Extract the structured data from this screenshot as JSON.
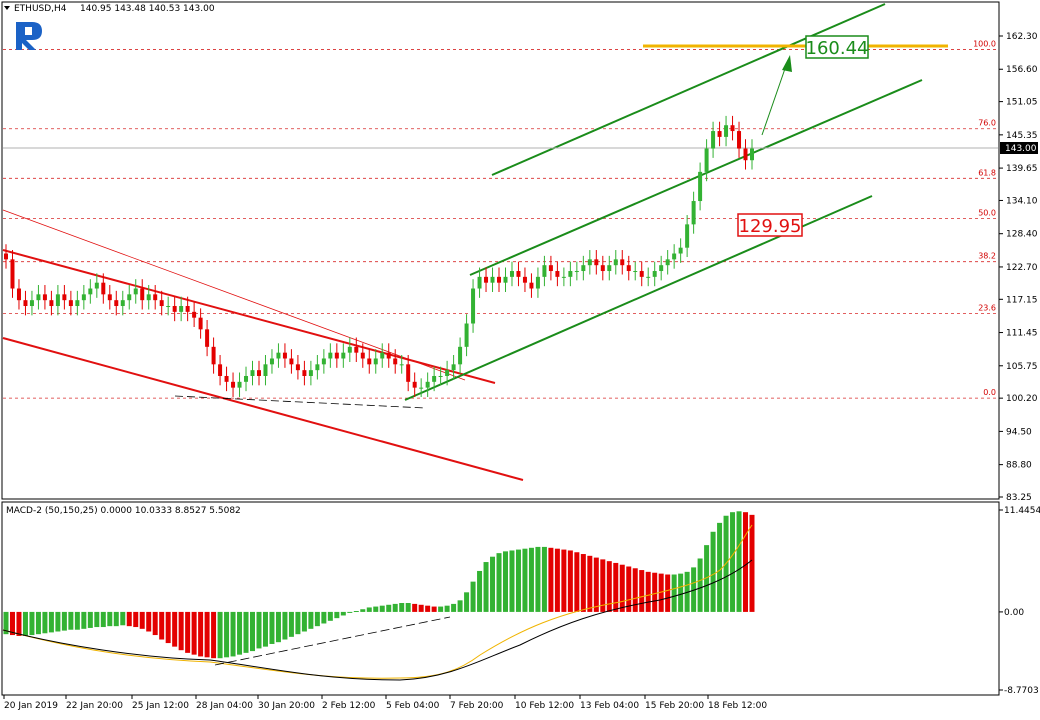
{
  "header": {
    "symbol": "ETHUSD,H4",
    "ohlc": "140.95 143.48 140.53 143.00"
  },
  "macd_header": "MACD-2 (50,150,25) 0.0000 10.0333 8.8527 5.5082",
  "colors": {
    "bull": "#33b233",
    "bear": "#e30000",
    "red_line": "#e11010",
    "green_line": "#1a8c1a",
    "fib_dash": "#d82a2a",
    "orange": "#f0b400",
    "logo": "#1b62c6"
  },
  "chart_data": [
    {
      "type": "candlestick",
      "panel": "price",
      "yaxis_ticks": [
        "162.30",
        "156.60",
        "151.05",
        "145.35",
        "139.65",
        "134.10",
        "128.40",
        "122.70",
        "117.15",
        "111.45",
        "105.75",
        "100.20",
        "94.50",
        "88.80",
        "83.25"
      ],
      "ylim": [
        83.25,
        165.0
      ],
      "current_price": "143.00",
      "fibonacci_levels": [
        {
          "label": "100.0",
          "price": 160.0
        },
        {
          "label": "76.0",
          "price": 146.4
        },
        {
          "label": "61.8",
          "price": 137.9
        },
        {
          "label": "50.0",
          "price": 131.0
        },
        {
          "label": "38.2",
          "price": 123.6
        },
        {
          "label": "23.6",
          "price": 114.7
        },
        {
          "label": "0.0",
          "price": 100.2
        }
      ],
      "targets": [
        {
          "label": "160.44",
          "color": "green"
        },
        {
          "label": "129.95",
          "color": "red"
        }
      ],
      "approx_closes": [
        124,
        119,
        117,
        116,
        117,
        118,
        117,
        116,
        118,
        117,
        116,
        117,
        118,
        119,
        120,
        118,
        117,
        116,
        117,
        118,
        119,
        117,
        118,
        117,
        116,
        116,
        115,
        116,
        115,
        114,
        112,
        109,
        106,
        104,
        103,
        102,
        103,
        104,
        105,
        104,
        106,
        107,
        108,
        107,
        106,
        105,
        104,
        105,
        106,
        107,
        108,
        107,
        108,
        109,
        108,
        107,
        106,
        107,
        108,
        107,
        106,
        106,
        103,
        102,
        102,
        103,
        104,
        104,
        105,
        106,
        109,
        113,
        119,
        121,
        120,
        121,
        120,
        121,
        122,
        121,
        120,
        119,
        121,
        123,
        122,
        121,
        121,
        122,
        122,
        123,
        124,
        123,
        122,
        123,
        124,
        123,
        122,
        122,
        121,
        121,
        122,
        123,
        124,
        125,
        126,
        130,
        134,
        139,
        143,
        146,
        145,
        147,
        146,
        143,
        141,
        143
      ]
    },
    {
      "type": "bar",
      "panel": "macd",
      "name": "MACD-2 (50,150,25)",
      "yaxis_ticks": [
        "11.4454",
        "0.00",
        "-8.7703"
      ],
      "ylim": [
        -8.7703,
        11.4454
      ],
      "approx_values": [
        -2.5,
        -2.6,
        -2.7,
        -2.7,
        -2.6,
        -2.5,
        -2.4,
        -2.3,
        -2.2,
        -2.1,
        -2.0,
        -2.0,
        -1.9,
        -1.8,
        -1.7,
        -1.7,
        -1.6,
        -1.6,
        -1.5,
        -1.6,
        -1.7,
        -1.9,
        -2.2,
        -2.6,
        -3.1,
        -3.5,
        -3.9,
        -4.3,
        -4.6,
        -4.8,
        -5.0,
        -5.1,
        -5.2,
        -5.2,
        -5.1,
        -5.0,
        -4.8,
        -4.6,
        -4.4,
        -4.1,
        -3.9,
        -3.6,
        -3.4,
        -3.1,
        -2.8,
        -2.5,
        -2.2,
        -1.9,
        -1.6,
        -1.3,
        -1.0,
        -0.7,
        -0.4,
        -0.1,
        0.1,
        0.3,
        0.5,
        0.6,
        0.7,
        0.8,
        0.9,
        1.0,
        1.0,
        0.9,
        0.8,
        0.7,
        0.6,
        0.6,
        0.7,
        0.9,
        1.3,
        2.2,
        3.4,
        4.6,
        5.6,
        6.2,
        6.6,
        6.8,
        6.9,
        7.0,
        7.1,
        7.2,
        7.3,
        7.3,
        7.2,
        7.1,
        7.0,
        6.9,
        6.7,
        6.5,
        6.3,
        6.1,
        5.9,
        5.7,
        5.5,
        5.3,
        5.1,
        4.9,
        4.7,
        4.5,
        4.4,
        4.3,
        4.2,
        4.2,
        4.3,
        4.5,
        5.0,
        6.0,
        7.5,
        9.0,
        10.0,
        10.8,
        11.2,
        11.3,
        11.2,
        10.9
      ]
    }
  ],
  "xaxis_ticks": [
    "20 Jan 2019",
    "22 Jan 20:00",
    "25 Jan 12:00",
    "28 Jan 04:00",
    "30 Jan 20:00",
    "2 Feb 12:00",
    "5 Feb 04:00",
    "7 Feb 20:00",
    "10 Feb 12:00",
    "13 Feb 04:00",
    "15 Feb 20:00",
    "18 Feb 12:00"
  ]
}
